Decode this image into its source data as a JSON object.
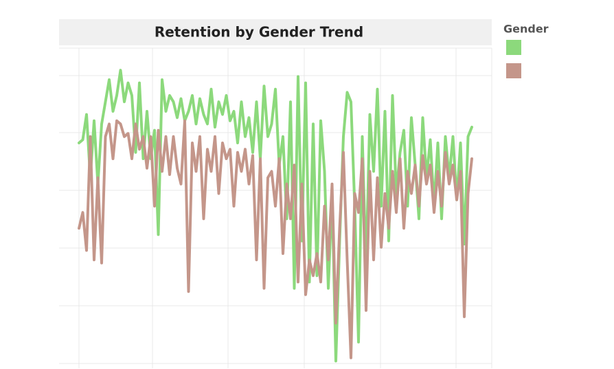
{
  "chart_data": {
    "type": "line",
    "title": "Retention by Gender Trend",
    "legend_title": "Gender",
    "ylim": [
      0,
      100
    ],
    "series": [
      {
        "color": "#8cd97c",
        "values": [
          70,
          71,
          79,
          59,
          77,
          57,
          76,
          83,
          90,
          80,
          85,
          93,
          83,
          89,
          85,
          67,
          89,
          65,
          80,
          65,
          74,
          41,
          90,
          80,
          85,
          83,
          78,
          84,
          77,
          80,
          85,
          76,
          84,
          79,
          76,
          87,
          75,
          83,
          79,
          85,
          77,
          80,
          70,
          83,
          72,
          78,
          67,
          83,
          65,
          88,
          72,
          76,
          87,
          63,
          72,
          46,
          83,
          24,
          91,
          39,
          89,
          26,
          76,
          28,
          77,
          61,
          24,
          54,
          1,
          39,
          72,
          86,
          83,
          50,
          7,
          72,
          30,
          79,
          61,
          87,
          50,
          80,
          39,
          85,
          54,
          67,
          74,
          50,
          78,
          63,
          46,
          78,
          59,
          71,
          50,
          70,
          46,
          72,
          59,
          72,
          52,
          70,
          38,
          72,
          75
        ]
      },
      {
        "color": "#c4968a",
        "values": [
          43,
          48,
          36,
          72,
          33,
          59,
          32,
          72,
          76,
          65,
          77,
          76,
          72,
          73,
          65,
          76,
          68,
          72,
          62,
          72,
          50,
          74,
          61,
          72,
          60,
          72,
          62,
          57,
          77,
          23,
          70,
          61,
          72,
          46,
          68,
          61,
          72,
          54,
          70,
          65,
          68,
          50,
          67,
          61,
          68,
          57,
          66,
          33,
          65,
          24,
          59,
          61,
          50,
          65,
          35,
          57,
          46,
          63,
          26,
          57,
          22,
          33,
          28,
          35,
          26,
          50,
          33,
          57,
          13,
          43,
          67,
          33,
          2,
          54,
          48,
          65,
          17,
          61,
          33,
          59,
          37,
          54,
          43,
          61,
          48,
          65,
          43,
          61,
          54,
          63,
          50,
          66,
          57,
          63,
          48,
          61,
          50,
          67,
          57,
          63,
          52,
          61,
          15,
          54,
          65
        ]
      }
    ]
  }
}
